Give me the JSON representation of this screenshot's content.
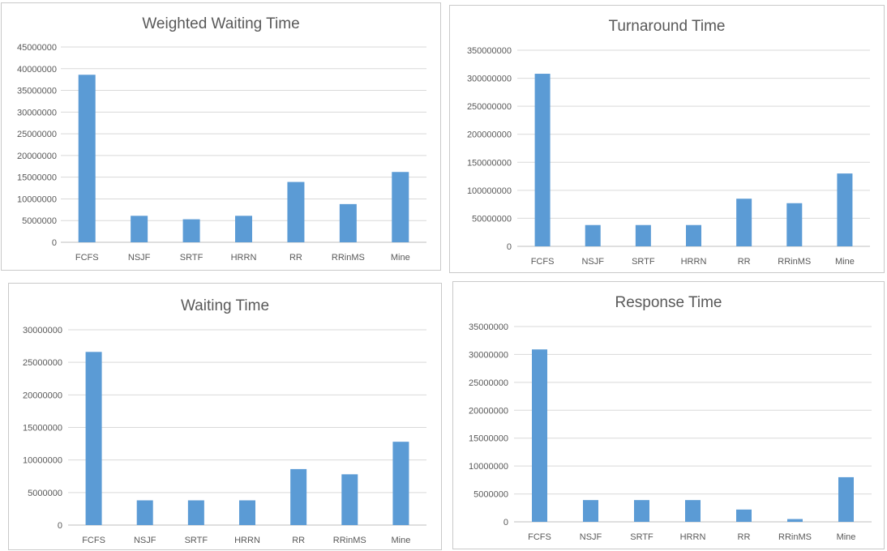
{
  "bar_color": "#5b9bd5",
  "chart_data": [
    {
      "type": "bar",
      "title": "Weighted Waiting Time",
      "categories": [
        "FCFS",
        "NSJF",
        "SRTF",
        "HRRN",
        "RR",
        "RRinMS",
        "Mine"
      ],
      "values": [
        38600000,
        6100000,
        5300000,
        6100000,
        13900000,
        8800000,
        16200000
      ],
      "ylim": [
        0,
        45000000
      ],
      "yticks": [
        "0",
        "5000000",
        "10000000",
        "15000000",
        "20000000",
        "25000000",
        "30000000",
        "35000000",
        "40000000",
        "45000000"
      ],
      "grid": true
    },
    {
      "type": "bar",
      "title": "Turnaround Time",
      "categories": [
        "FCFS",
        "NSJF",
        "SRTF",
        "HRRN",
        "RR",
        "RRinMS",
        "Mine"
      ],
      "values": [
        308000000,
        38000000,
        38000000,
        38000000,
        85000000,
        77000000,
        130000000
      ],
      "ylim": [
        0,
        350000000
      ],
      "yticks": [
        "0",
        "50000000",
        "100000000",
        "150000000",
        "200000000",
        "250000000",
        "300000000",
        "350000000"
      ],
      "grid": true
    },
    {
      "type": "bar",
      "title": "Waiting Time",
      "categories": [
        "FCFS",
        "NSJF",
        "SRTF",
        "HRRN",
        "RR",
        "RRinMS",
        "Mine"
      ],
      "values": [
        26600000,
        3800000,
        3800000,
        3800000,
        8600000,
        7800000,
        12800000
      ],
      "ylim": [
        0,
        30000000
      ],
      "yticks": [
        "0",
        "5000000",
        "10000000",
        "15000000",
        "20000000",
        "25000000",
        "30000000"
      ],
      "grid": true
    },
    {
      "type": "bar",
      "title": "Response Time",
      "categories": [
        "FCFS",
        "NSJF",
        "SRTF",
        "HRRN",
        "RR",
        "RRinMS",
        "Mine"
      ],
      "values": [
        30900000,
        3900000,
        3900000,
        3900000,
        2200000,
        500000,
        8000000
      ],
      "ylim": [
        0,
        35000000
      ],
      "yticks": [
        "0",
        "5000000",
        "10000000",
        "15000000",
        "20000000",
        "25000000",
        "30000000",
        "35000000"
      ],
      "grid": true
    }
  ]
}
